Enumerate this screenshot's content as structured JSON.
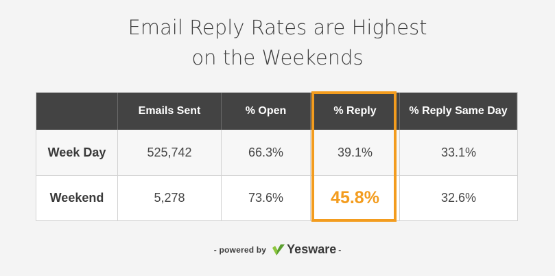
{
  "title": {
    "line1": "Email Reply Rates are Highest",
    "line2": "on the Weekends"
  },
  "chart_data": {
    "type": "table",
    "columns": [
      "",
      "Emails Sent",
      "% Open",
      "% Reply",
      "% Reply Same Day"
    ],
    "rows": [
      {
        "label": "Week Day",
        "values": [
          "525,742",
          "66.3%",
          "39.1%",
          "33.1%"
        ]
      },
      {
        "label": "Weekend",
        "values": [
          "5,278",
          "73.6%",
          "45.8%",
          "32.6%"
        ]
      }
    ],
    "highlight_column": "% Reply",
    "highlight_color": "#f39c1e",
    "header_color": "#434343"
  },
  "footer": {
    "powered_by": "- powered by",
    "brand": "Yesware",
    "trailing": "-",
    "logo_icon": "yesware-check-logo-icon",
    "logo_colors": [
      "#8dc63f",
      "#5a9e2f"
    ]
  }
}
